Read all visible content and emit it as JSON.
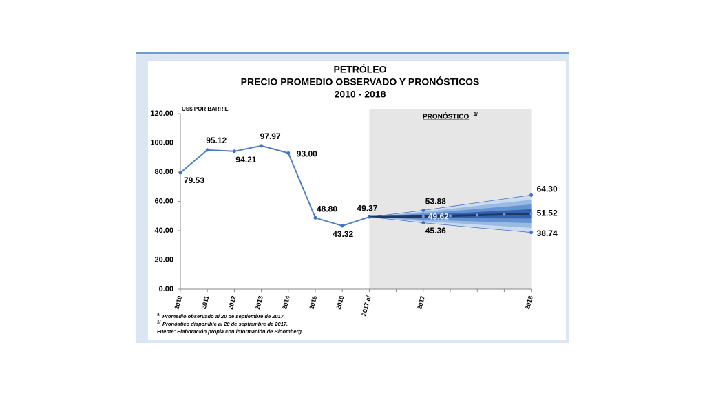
{
  "chart_data": {
    "type": "line",
    "title": [
      "PETRÓLEO",
      "PRECIO PROMEDIO OBSERVADO Y PRONÓSTICOS",
      "2010 - 2018"
    ],
    "y_axis_label": "US$ POR BARRIL",
    "annotation": {
      "text": "PRONÓSTICO",
      "marker": "1/"
    },
    "categories": [
      "2010",
      "2011",
      "2012",
      "2013",
      "2014",
      "2015",
      "2016",
      "2017 a/",
      null,
      "2017",
      null,
      null,
      null,
      "2018"
    ],
    "ylim": [
      0,
      120
    ],
    "yticks": [
      {
        "value": 0,
        "label": "0.00"
      },
      {
        "value": 20,
        "label": "20.00"
      },
      {
        "value": 40,
        "label": "40.00"
      },
      {
        "value": 60,
        "label": "60.00"
      },
      {
        "value": 80,
        "label": "80.00"
      },
      {
        "value": 100,
        "label": "100.00"
      },
      {
        "value": 120,
        "label": "120.00"
      }
    ],
    "series": [
      {
        "color": "#4f81bd",
        "values": [
          79.53,
          95.12,
          94.21,
          97.97,
          93.0,
          48.8,
          43.32,
          49.37,
          null,
          null,
          null,
          null,
          null,
          null
        ],
        "value_labels": [
          "79.53",
          "95.12",
          "94.21",
          "97.97",
          "93.00",
          "48.80",
          "43.32",
          "49.37",
          null,
          null,
          null,
          null,
          null,
          null
        ]
      },
      {
        "color": "#4472c4",
        "values": [
          null,
          null,
          null,
          null,
          null,
          null,
          null,
          49.37,
          51.6,
          53.88,
          56.5,
          59.1,
          61.7,
          64.3
        ],
        "value_labels": [
          null,
          null,
          null,
          null,
          null,
          null,
          null,
          null,
          null,
          "53.88",
          null,
          null,
          null,
          "64.30"
        ]
      },
      {
        "color": "#1f3864",
        "values": [
          null,
          null,
          null,
          null,
          null,
          null,
          null,
          49.37,
          49.5,
          49.62,
          50.1,
          50.6,
          51.06,
          51.52
        ],
        "value_labels": [
          null,
          null,
          null,
          null,
          null,
          null,
          null,
          null,
          null,
          "49.62",
          null,
          null,
          null,
          "51.52"
        ]
      },
      {
        "color": "#4472c4",
        "values": [
          null,
          null,
          null,
          null,
          null,
          null,
          null,
          49.37,
          47.4,
          45.36,
          43.7,
          42.0,
          40.4,
          38.74
        ],
        "value_labels": [
          null,
          null,
          null,
          null,
          null,
          null,
          null,
          null,
          null,
          "45.36",
          null,
          null,
          null,
          "38.74"
        ]
      }
    ],
    "footnotes": [
      {
        "marker": "a/",
        "text": "Promedio observado al 20 de septiembre de 2017."
      },
      {
        "marker": "1/",
        "text": "Pronóstico disponible al 20 de septiembre de 2017."
      },
      {
        "marker": null,
        "text": "Fuente: Elaboración propia con información de Bloomberg."
      }
    ]
  }
}
